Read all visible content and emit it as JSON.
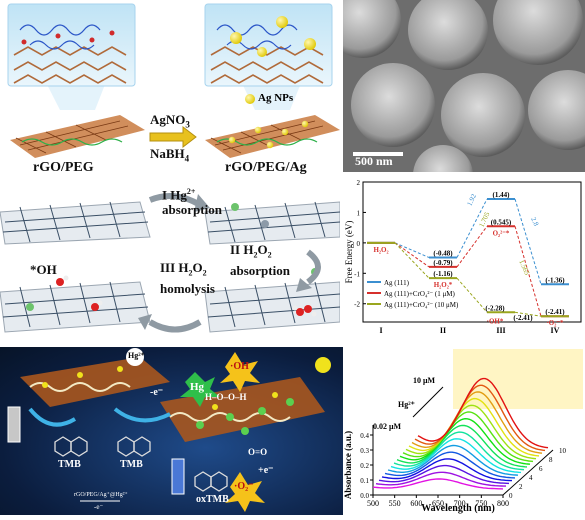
{
  "panel_a": {
    "label_left": "rGO/PEG",
    "label_right": "rGO/PEG/Ag",
    "reagent_top": "AgNO",
    "reagent_top_sub": "3",
    "reagent_bottom": "NaBH",
    "reagent_bottom_sub": "4",
    "legend_ag": "Ag NPs",
    "colors": {
      "sheet": "#b5652e",
      "peg": "#2a55c7",
      "ag": "#f2dc1a"
    }
  },
  "panel_sem": {
    "scale_label": "500 nm"
  },
  "panel_mechanism": {
    "step1_a": "I Hg",
    "step1_sup": "2+",
    "step1_b": "absorption",
    "step2_a": "II H",
    "step2_sub1": "2",
    "step2_mid": "O",
    "step2_sub2": "2",
    "step2_b": "absorption",
    "step3_a": "III H",
    "step3_sub1": "2",
    "step3_mid": "O",
    "step3_sub2": "2",
    "step3_b": "homolysis",
    "oh_label": "*OH"
  },
  "chart_energy": {
    "ylabel": "Free Energy (eV)",
    "xticks": [
      "I",
      "II",
      "III",
      "IV"
    ],
    "yticks": [
      "2",
      "1",
      "0",
      "-1",
      "-2"
    ],
    "legend": [
      "Ag (111)",
      "Ag (111)+CrO₄²⁻ (1 μM)",
      "Ag (111)+CrO₄²⁻ (10 μM)"
    ],
    "labels": {
      "h2o2": "H₂O₂",
      "h2o2_star": "H₂O₂*",
      "oh_star": "·OH*",
      "o2_star": "O₂²⁻*",
      "o2m_star": "·O₂⁻*"
    },
    "values": {
      "II_blue": "(-0.48)",
      "II_red": "(-0.79)",
      "II_green": "(-1.16)",
      "III_blue": "(1.44)",
      "III_red": "(0.545)",
      "III_mid": "(-2.28)",
      "III_low": "(-2.41)",
      "IV_blue": "(-1.36)",
      "IV_low": "(-2.41)"
    },
    "barriers": [
      "1.92",
      "1.705",
      "1.565",
      "2.8"
    ],
    "colors": {
      "blue": "#3b8fd0",
      "red": "#d6302c",
      "green": "#9aa61e"
    }
  },
  "panel_scheme": {
    "hg_ion": "Hg²⁺",
    "hg": "Hg",
    "oh": "·OH",
    "o2": "·O₂⁻",
    "e1": "-e⁻",
    "e2": "+e⁻",
    "tmb1": "TMB",
    "tmb2": "TMB",
    "oxtmb": "oxTMB",
    "peroxide": "H–O–O–H",
    "oo": "O=O",
    "eq_arrow": "rGO/PEG/Ag⁺@Hg²⁺",
    "eq_minus": "-e⁻"
  },
  "chart_spectra": {
    "ylabel": "Absorbance (a.u.)",
    "xlabel": "Wavelength (nm)",
    "xticks": [
      "500",
      "550",
      "600",
      "650",
      "700",
      "750",
      "800"
    ],
    "yticks": [
      "0.0",
      "0.1",
      "0.2",
      "0.3",
      "0.4"
    ],
    "zticks": [
      "0",
      "2",
      "4",
      "6",
      "8",
      "10"
    ],
    "label_high": "10 μM",
    "label_ion": "Hg²⁺",
    "label_low": "0.02 μM"
  },
  "chart_data": [
    {
      "type": "line",
      "title": "",
      "ylabel": "Free Energy (eV)",
      "categories": [
        "I",
        "II",
        "III",
        "IV"
      ],
      "ylim": [
        -2.6,
        2.0
      ],
      "series": [
        {
          "name": "Ag (111)",
          "values": [
            0,
            -0.48,
            1.44,
            -1.36
          ]
        },
        {
          "name": "Ag (111)+CrO₄²⁻ (1 μM)",
          "values": [
            0,
            -0.79,
            0.545,
            -2.41
          ]
        },
        {
          "name": "Ag (111)+CrO₄²⁻ (10 μM)",
          "values": [
            0,
            -1.16,
            -2.28,
            -2.41
          ]
        }
      ]
    },
    {
      "type": "line",
      "title": "",
      "xlabel": "Wavelength (nm)",
      "ylabel": "Absorbance (a.u.)",
      "xlim": [
        500,
        800
      ],
      "ylim": [
        0.0,
        0.5
      ],
      "series_count": 16,
      "peak_nm": 652
    }
  ]
}
